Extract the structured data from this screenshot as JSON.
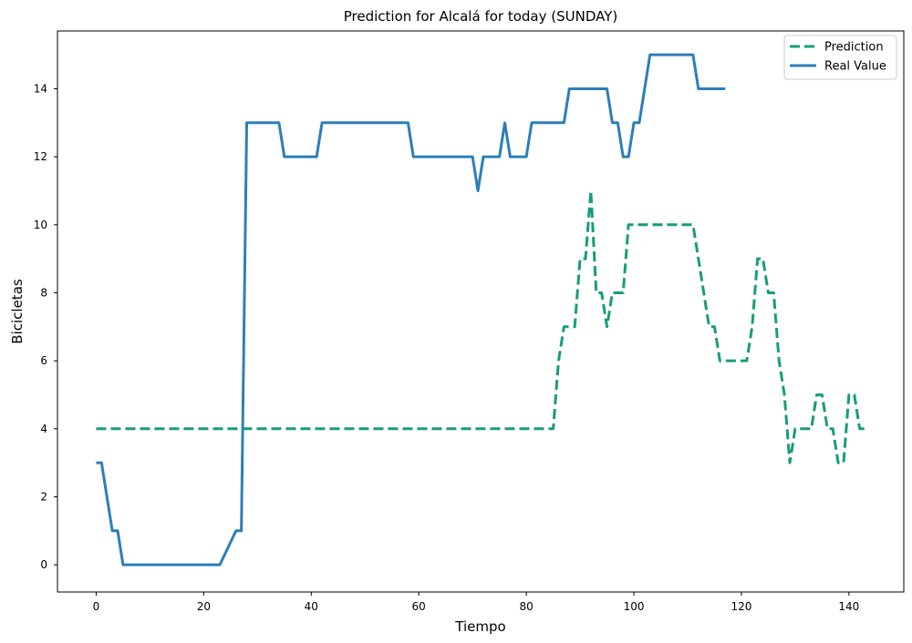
{
  "chart_data": {
    "type": "line",
    "title": "Prediction for Alcalá for today (SUNDAY)",
    "xlabel": "Tiempo",
    "ylabel": "Bicicletas",
    "xlim": [
      -7.2,
      150.2
    ],
    "ylim": [
      -0.8,
      15.7
    ],
    "xticks": [
      0,
      20,
      40,
      60,
      80,
      100,
      120,
      140
    ],
    "yticks": [
      0,
      2,
      4,
      6,
      8,
      10,
      12,
      14
    ],
    "grid": false,
    "legend_position": "top-right",
    "series": [
      {
        "name": "Prediction",
        "style": "dashed",
        "color": "#179c7d",
        "x": [
          0,
          85,
          86,
          87,
          88,
          89,
          90,
          91,
          92,
          93,
          94,
          95,
          96,
          97,
          98,
          99,
          100,
          101,
          102,
          103,
          104,
          105,
          106,
          107,
          108,
          109,
          110,
          111,
          112,
          113,
          114,
          115,
          116,
          117,
          118,
          119,
          120,
          121,
          122,
          123,
          124,
          125,
          126,
          127,
          128,
          129,
          130,
          131,
          132,
          133,
          134,
          135,
          136,
          137,
          138,
          139,
          140,
          141,
          142,
          143
        ],
        "y": [
          4,
          4,
          6,
          7,
          7,
          7,
          9,
          9,
          11,
          8,
          8,
          7,
          8,
          8,
          8,
          10,
          10,
          10,
          10,
          10,
          10,
          10,
          10,
          10,
          10,
          10,
          10,
          10,
          9,
          8,
          7,
          7,
          6,
          6,
          6,
          6,
          6,
          6,
          7,
          9,
          9,
          8,
          8,
          6,
          5,
          3,
          4,
          4,
          4,
          4,
          5,
          5,
          4,
          4,
          3,
          3,
          5,
          5,
          4,
          4
        ]
      },
      {
        "name": "Real Value",
        "style": "solid",
        "color": "#2c7fb8",
        "x": [
          0,
          1,
          2,
          3,
          4,
          5,
          22,
          23,
          26,
          27,
          28,
          34,
          35,
          41,
          42,
          58,
          59,
          70,
          71,
          72,
          75,
          76,
          77,
          80,
          81,
          87,
          88,
          95,
          96,
          97,
          98,
          99,
          100,
          101,
          102,
          103,
          111,
          112,
          117
        ],
        "y": [
          3,
          3,
          2,
          1,
          1,
          0,
          0,
          0,
          1,
          1,
          13,
          13,
          12,
          12,
          13,
          13,
          12,
          12,
          11,
          12,
          12,
          13,
          12,
          12,
          13,
          13,
          14,
          14,
          13,
          13,
          12,
          12,
          13,
          13,
          14,
          15,
          15,
          14,
          14
        ]
      }
    ]
  }
}
